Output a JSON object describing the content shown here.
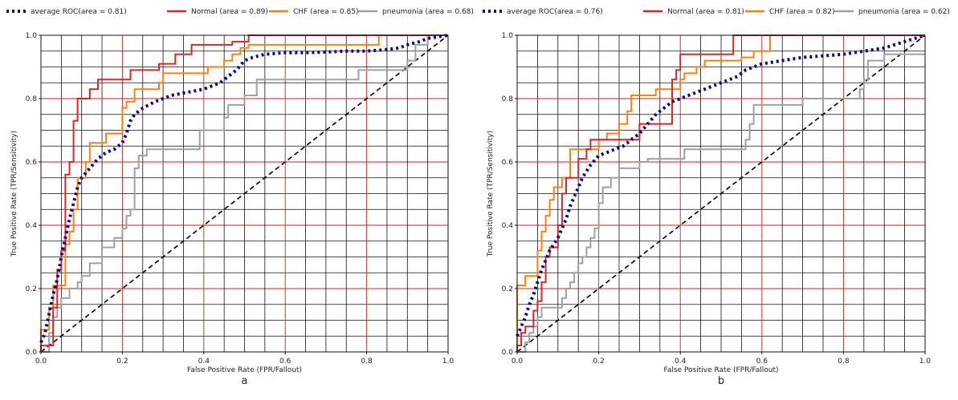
{
  "chart_data": [
    {
      "type": "line",
      "panel_label": "a",
      "xlabel": "False Positive Rate (FPR/Fallout)",
      "ylabel": "True Positive Rate (TPR/Sensitivity)",
      "xlim": [
        0,
        1
      ],
      "ylim": [
        0,
        1
      ],
      "xticks": [
        "0.0",
        "0.2",
        "0.4",
        "0.6",
        "0.8",
        "1.0"
      ],
      "yticks": [
        "0.0",
        "0.2",
        "0.4",
        "0.6",
        "0.8",
        "1.0"
      ],
      "legend": "top",
      "grid": true,
      "series": [
        {
          "name": "average ROC(area = 0.81)",
          "color": "#0a0a80",
          "style": "dotted",
          "x": [
            0,
            0.01,
            0.02,
            0.03,
            0.04,
            0.05,
            0.06,
            0.07,
            0.08,
            0.09,
            0.1,
            0.12,
            0.14,
            0.16,
            0.18,
            0.2,
            0.21,
            0.22,
            0.23,
            0.25,
            0.28,
            0.32,
            0.36,
            0.4,
            0.42,
            0.44,
            0.45,
            0.46,
            0.48,
            0.5,
            0.52,
            0.55,
            0.6,
            0.65,
            0.7,
            0.75,
            0.8,
            0.85,
            0.88,
            0.9,
            0.93,
            0.95,
            1.0
          ],
          "y": [
            0.03,
            0.06,
            0.12,
            0.18,
            0.23,
            0.3,
            0.36,
            0.42,
            0.47,
            0.52,
            0.55,
            0.58,
            0.61,
            0.63,
            0.64,
            0.66,
            0.69,
            0.73,
            0.75,
            0.77,
            0.79,
            0.81,
            0.82,
            0.83,
            0.84,
            0.85,
            0.86,
            0.87,
            0.89,
            0.92,
            0.93,
            0.94,
            0.945,
            0.945,
            0.947,
            0.95,
            0.95,
            0.955,
            0.96,
            0.97,
            0.98,
            0.99,
            1.0
          ]
        },
        {
          "name": "Normal (area = 0.89)",
          "color": "#d62728",
          "style": "solid",
          "x": [
            0,
            0,
            0.01,
            0.03,
            0.03,
            0.04,
            0.04,
            0.05,
            0.05,
            0.06,
            0.06,
            0.07,
            0.07,
            0.08,
            0.08,
            0.09,
            0.09,
            0.12,
            0.12,
            0.14,
            0.14,
            0.22,
            0.22,
            0.29,
            0.29,
            0.33,
            0.33,
            0.37,
            0.37,
            0.47,
            0.47,
            0.51,
            0.51,
            1.0
          ],
          "y": [
            0,
            0.02,
            0.02,
            0.02,
            0.14,
            0.14,
            0.26,
            0.26,
            0.32,
            0.32,
            0.56,
            0.56,
            0.6,
            0.6,
            0.73,
            0.73,
            0.8,
            0.8,
            0.83,
            0.83,
            0.86,
            0.86,
            0.89,
            0.89,
            0.91,
            0.91,
            0.94,
            0.94,
            0.97,
            0.97,
            0.98,
            0.98,
            1.0,
            1.0
          ]
        },
        {
          "name": "CHF (area = 0.85)",
          "color": "#ff7f0e",
          "style": "solid",
          "x": [
            0,
            0,
            0.02,
            0.02,
            0.03,
            0.03,
            0.06,
            0.06,
            0.07,
            0.07,
            0.08,
            0.08,
            0.09,
            0.09,
            0.11,
            0.11,
            0.12,
            0.12,
            0.16,
            0.16,
            0.2,
            0.2,
            0.21,
            0.21,
            0.23,
            0.23,
            0.29,
            0.29,
            0.3,
            0.3,
            0.41,
            0.41,
            0.45,
            0.45,
            0.47,
            0.47,
            0.49,
            0.49,
            0.51,
            0.51,
            0.83,
            0.83,
            1.0
          ],
          "y": [
            0,
            0.07,
            0.07,
            0.14,
            0.14,
            0.21,
            0.21,
            0.34,
            0.34,
            0.38,
            0.38,
            0.45,
            0.45,
            0.55,
            0.55,
            0.6,
            0.6,
            0.66,
            0.66,
            0.69,
            0.69,
            0.77,
            0.77,
            0.79,
            0.79,
            0.83,
            0.83,
            0.85,
            0.85,
            0.88,
            0.88,
            0.9,
            0.9,
            0.92,
            0.92,
            0.94,
            0.94,
            0.96,
            0.96,
            0.97,
            0.97,
            1.0,
            1.0
          ]
        },
        {
          "name": "pneumonia (area = 0.68)",
          "color": "#a0a0a0",
          "style": "solid",
          "x": [
            0,
            0.02,
            0.02,
            0.03,
            0.03,
            0.04,
            0.04,
            0.05,
            0.05,
            0.07,
            0.07,
            0.09,
            0.09,
            0.1,
            0.1,
            0.12,
            0.12,
            0.15,
            0.15,
            0.18,
            0.18,
            0.2,
            0.2,
            0.21,
            0.21,
            0.22,
            0.22,
            0.23,
            0.23,
            0.24,
            0.24,
            0.26,
            0.26,
            0.39,
            0.39,
            0.45,
            0.45,
            0.46,
            0.46,
            0.5,
            0.5,
            0.53,
            0.53,
            0.58,
            0.58,
            0.78,
            0.78,
            0.84,
            0.84,
            0.9,
            0.9,
            0.92,
            0.92,
            0.95,
            0.95,
            1.0
          ],
          "y": [
            0,
            0,
            0.06,
            0.06,
            0.11,
            0.11,
            0.14,
            0.14,
            0.17,
            0.17,
            0.2,
            0.2,
            0.22,
            0.22,
            0.24,
            0.24,
            0.28,
            0.28,
            0.33,
            0.33,
            0.36,
            0.36,
            0.39,
            0.39,
            0.43,
            0.43,
            0.45,
            0.45,
            0.58,
            0.58,
            0.62,
            0.62,
            0.64,
            0.64,
            0.7,
            0.7,
            0.74,
            0.74,
            0.78,
            0.78,
            0.81,
            0.81,
            0.86,
            0.86,
            0.86,
            0.86,
            0.89,
            0.89,
            0.89,
            0.89,
            0.92,
            0.92,
            0.97,
            0.97,
            1.0,
            1.0
          ]
        },
        {
          "name": "",
          "color": "#000000",
          "style": "dashed",
          "x": [
            0,
            1
          ],
          "y": [
            0,
            1
          ]
        }
      ]
    },
    {
      "type": "line",
      "panel_label": "b",
      "xlabel": "False Positive Rate (FPR/Fallout)",
      "ylabel": "True Positive Rate (TPR/Sensitivity)",
      "xlim": [
        0,
        1
      ],
      "ylim": [
        0,
        1
      ],
      "xticks": [
        "0.0",
        "0.2",
        "0.4",
        "0.6",
        "0.8",
        "1.0"
      ],
      "yticks": [
        "0.0",
        "0.2",
        "0.4",
        "0.6",
        "0.8",
        "1.0"
      ],
      "legend": "top",
      "grid": true,
      "series": [
        {
          "name": "average ROC(area = 0.76)",
          "color": "#0a0a80",
          "style": "dotted",
          "x": [
            0,
            0.01,
            0.02,
            0.03,
            0.04,
            0.05,
            0.06,
            0.07,
            0.08,
            0.09,
            0.1,
            0.11,
            0.12,
            0.13,
            0.14,
            0.15,
            0.16,
            0.18,
            0.2,
            0.22,
            0.24,
            0.26,
            0.28,
            0.3,
            0.32,
            0.34,
            0.36,
            0.38,
            0.4,
            0.42,
            0.44,
            0.46,
            0.48,
            0.5,
            0.52,
            0.54,
            0.56,
            0.58,
            0.6,
            0.65,
            0.7,
            0.75,
            0.8,
            0.85,
            0.9,
            0.95,
            1.0
          ],
          "y": [
            0.05,
            0.08,
            0.11,
            0.15,
            0.18,
            0.22,
            0.26,
            0.29,
            0.32,
            0.34,
            0.36,
            0.39,
            0.42,
            0.46,
            0.49,
            0.52,
            0.55,
            0.59,
            0.62,
            0.63,
            0.64,
            0.65,
            0.67,
            0.69,
            0.72,
            0.75,
            0.77,
            0.79,
            0.8,
            0.81,
            0.82,
            0.83,
            0.84,
            0.85,
            0.86,
            0.87,
            0.89,
            0.9,
            0.91,
            0.92,
            0.93,
            0.935,
            0.94,
            0.95,
            0.96,
            0.98,
            1.0
          ]
        },
        {
          "name": "Normal (area = 0.81)",
          "color": "#d62728",
          "style": "solid",
          "x": [
            0,
            0,
            0.01,
            0.01,
            0.02,
            0.02,
            0.04,
            0.04,
            0.05,
            0.05,
            0.06,
            0.06,
            0.07,
            0.07,
            0.08,
            0.08,
            0.1,
            0.1,
            0.11,
            0.11,
            0.12,
            0.12,
            0.15,
            0.15,
            0.17,
            0.17,
            0.18,
            0.18,
            0.2,
            0.2,
            0.23,
            0.23,
            0.26,
            0.26,
            0.28,
            0.28,
            0.3,
            0.3,
            0.34,
            0.34,
            0.38,
            0.38,
            0.39,
            0.39,
            0.4,
            0.4,
            0.44,
            0.44,
            0.53,
            0.53,
            0.6,
            0.6,
            1.0
          ],
          "y": [
            0,
            0.02,
            0.02,
            0.06,
            0.06,
            0.08,
            0.08,
            0.13,
            0.13,
            0.16,
            0.16,
            0.22,
            0.22,
            0.3,
            0.3,
            0.33,
            0.33,
            0.4,
            0.4,
            0.5,
            0.5,
            0.55,
            0.55,
            0.61,
            0.61,
            0.64,
            0.64,
            0.67,
            0.67,
            0.67,
            0.67,
            0.67,
            0.67,
            0.67,
            0.67,
            0.67,
            0.67,
            0.72,
            0.72,
            0.72,
            0.72,
            0.86,
            0.86,
            0.89,
            0.89,
            0.94,
            0.94,
            0.94,
            0.94,
            1.0,
            1.0,
            1.0,
            1.0
          ]
        },
        {
          "name": "CHF (area = 0.82)",
          "color": "#ff7f0e",
          "style": "solid",
          "x": [
            0,
            0,
            0.02,
            0.02,
            0.05,
            0.05,
            0.06,
            0.06,
            0.07,
            0.07,
            0.08,
            0.08,
            0.09,
            0.09,
            0.11,
            0.11,
            0.13,
            0.13,
            0.2,
            0.2,
            0.22,
            0.22,
            0.25,
            0.25,
            0.27,
            0.27,
            0.28,
            0.28,
            0.34,
            0.34,
            0.4,
            0.4,
            0.41,
            0.41,
            0.44,
            0.44,
            0.46,
            0.46,
            0.55,
            0.55,
            0.58,
            0.58,
            0.62,
            0.62,
            1.0
          ],
          "y": [
            0,
            0.21,
            0.21,
            0.24,
            0.24,
            0.32,
            0.32,
            0.38,
            0.38,
            0.43,
            0.43,
            0.48,
            0.48,
            0.52,
            0.52,
            0.55,
            0.55,
            0.64,
            0.64,
            0.67,
            0.67,
            0.69,
            0.69,
            0.72,
            0.72,
            0.76,
            0.76,
            0.81,
            0.81,
            0.83,
            0.83,
            0.86,
            0.86,
            0.88,
            0.88,
            0.9,
            0.9,
            0.92,
            0.92,
            0.93,
            0.93,
            0.95,
            0.95,
            1.0,
            1.0
          ]
        },
        {
          "name": "pneumonia (area = 0.62)",
          "color": "#a0a0a0",
          "style": "solid",
          "x": [
            0,
            0.02,
            0.02,
            0.03,
            0.03,
            0.04,
            0.04,
            0.05,
            0.05,
            0.06,
            0.06,
            0.11,
            0.11,
            0.12,
            0.12,
            0.13,
            0.13,
            0.14,
            0.14,
            0.15,
            0.15,
            0.16,
            0.16,
            0.17,
            0.17,
            0.18,
            0.18,
            0.19,
            0.19,
            0.2,
            0.2,
            0.21,
            0.21,
            0.23,
            0.23,
            0.25,
            0.25,
            0.3,
            0.3,
            0.32,
            0.32,
            0.38,
            0.38,
            0.41,
            0.41,
            0.56,
            0.56,
            0.57,
            0.57,
            0.58,
            0.58,
            0.7,
            0.7,
            0.8,
            0.8,
            0.84,
            0.84,
            0.85,
            0.85,
            0.86,
            0.86,
            0.9,
            0.9,
            1.0
          ],
          "y": [
            0,
            0,
            0.03,
            0.03,
            0.06,
            0.06,
            0.08,
            0.08,
            0.11,
            0.11,
            0.14,
            0.14,
            0.17,
            0.17,
            0.2,
            0.2,
            0.22,
            0.22,
            0.25,
            0.25,
            0.28,
            0.28,
            0.3,
            0.3,
            0.33,
            0.33,
            0.36,
            0.36,
            0.39,
            0.39,
            0.47,
            0.47,
            0.52,
            0.52,
            0.55,
            0.55,
            0.58,
            0.58,
            0.6,
            0.6,
            0.61,
            0.61,
            0.61,
            0.61,
            0.64,
            0.64,
            0.67,
            0.67,
            0.72,
            0.72,
            0.78,
            0.78,
            0.8,
            0.8,
            0.8,
            0.8,
            0.83,
            0.83,
            0.86,
            0.86,
            0.92,
            0.92,
            0.94,
            0.94
          ]
        },
        {
          "name": "",
          "color": "#000000",
          "style": "dashed",
          "x": [
            0,
            1
          ],
          "y": [
            0,
            1
          ]
        }
      ]
    }
  ]
}
